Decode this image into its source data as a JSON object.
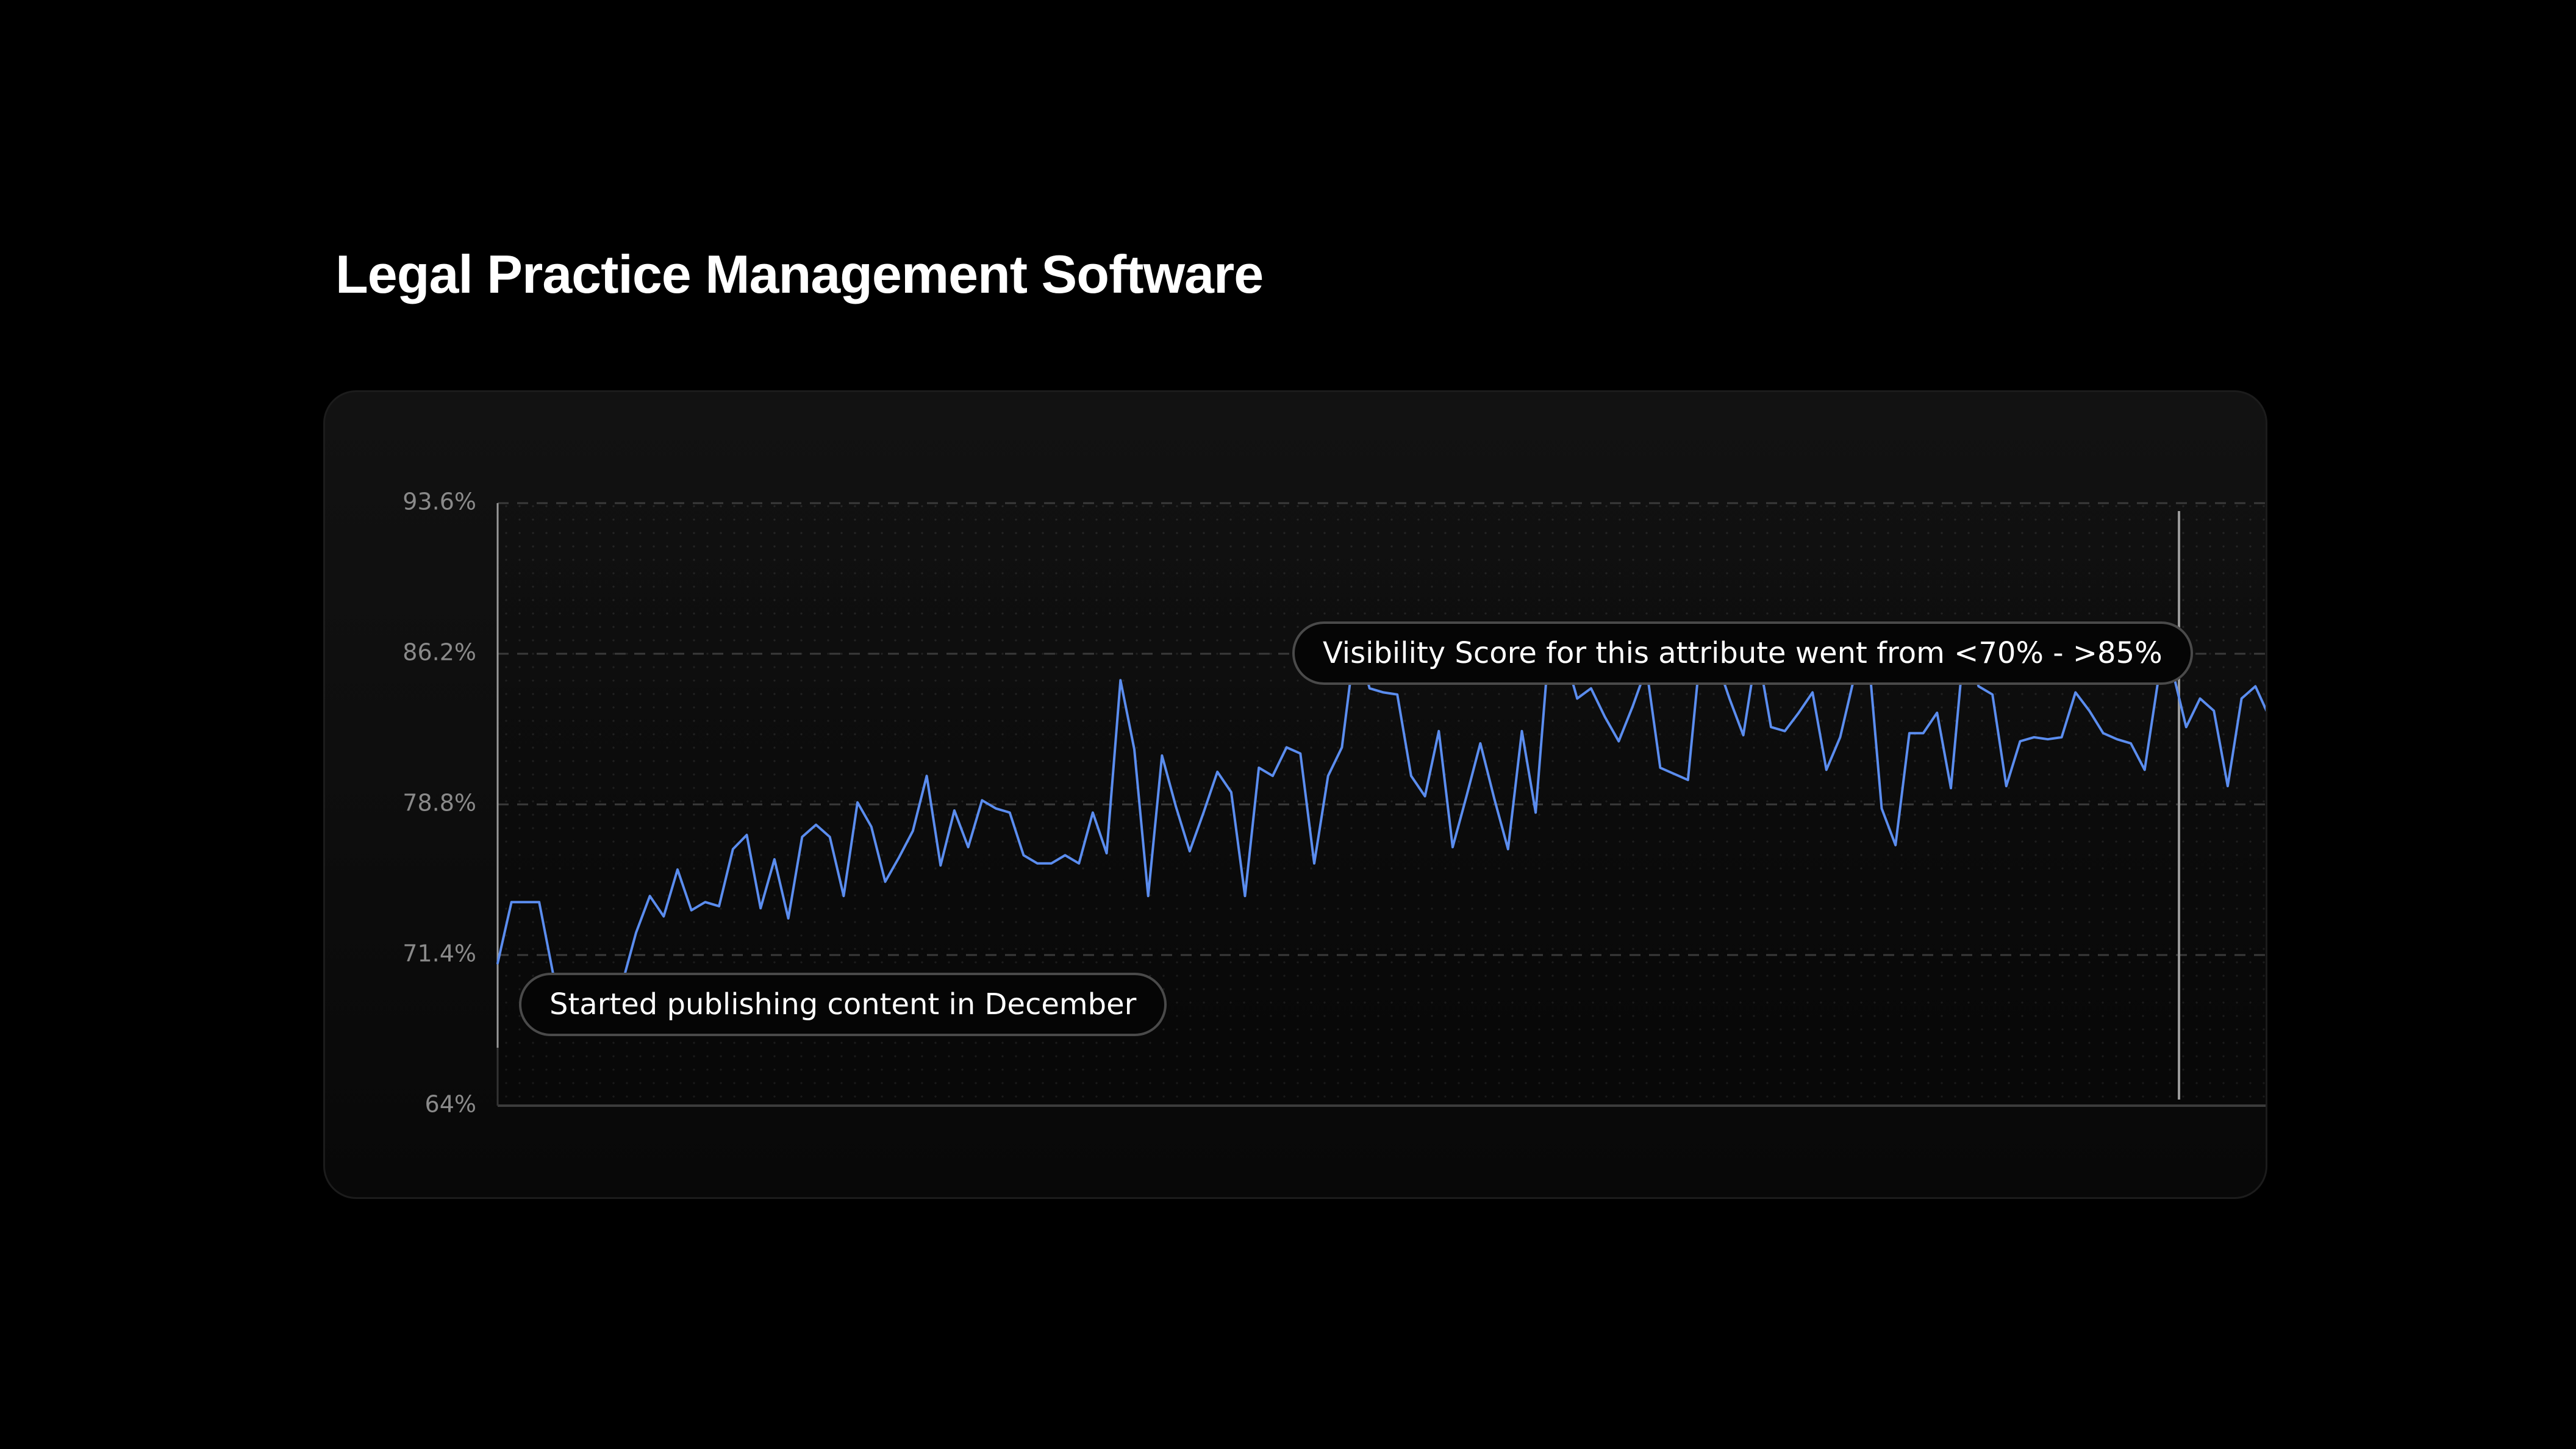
{
  "page": {
    "title": "Legal Practice Management Software"
  },
  "annotations": {
    "start": "Started publishing content in December",
    "visibility": "Visibility Score for this attribute went from <70% - >85%"
  },
  "colors": {
    "background": "#000000",
    "card": "#111111",
    "line": "#5b8def",
    "grid": "#3a3a3a",
    "marker": "#9a9a9a",
    "tick_label": "#8a8a8a"
  },
  "chart_data": {
    "type": "line",
    "title": "Legal Practice Management Software",
    "xlabel": "",
    "ylabel": "",
    "ylim": [
      64,
      93.6
    ],
    "yticks": [
      "93.6%",
      "86.2%",
      "78.8%",
      "71.4%",
      "64%"
    ],
    "ytick_values": [
      93.6,
      86.2,
      78.8,
      71.4,
      64
    ],
    "grid": "horizontal dashed",
    "legend": "none",
    "series": [
      {
        "values": [
          71.0,
          74.0,
          74.0,
          74.0,
          70.5,
          69.0,
          68.5,
          68.5,
          69.0,
          70.0,
          72.5,
          74.3,
          73.3,
          75.6,
          73.6,
          74.0,
          73.8,
          76.6,
          77.3,
          73.7,
          76.1,
          73.2,
          77.2,
          77.8,
          77.2,
          74.3,
          78.9,
          77.7,
          75.0,
          76.2,
          77.5,
          80.2,
          75.8,
          78.5,
          76.7,
          79.0,
          78.6,
          78.4,
          76.3,
          75.9,
          75.9,
          76.3,
          75.9,
          78.4,
          76.4,
          84.9,
          81.5,
          74.3,
          81.2,
          78.7,
          76.5,
          78.4,
          80.4,
          79.4,
          74.3,
          80.6,
          80.2,
          81.6,
          81.3,
          75.9,
          80.2,
          81.6,
          87.0,
          84.5,
          84.3,
          84.2,
          80.2,
          79.2,
          82.4,
          76.7,
          79.2,
          81.8,
          79.1,
          76.6,
          82.4,
          78.4,
          86.9,
          86.4,
          84.0,
          84.5,
          83.1,
          81.9,
          83.6,
          85.5,
          80.6,
          80.3,
          80.0,
          87.0,
          86.0,
          84.0,
          82.2,
          86.5,
          82.6,
          82.4,
          83.3,
          84.3,
          80.5,
          82.1,
          85.0,
          86.5,
          78.6,
          76.8,
          82.3,
          82.3,
          83.3,
          79.6,
          87.0,
          84.6,
          84.2,
          79.7,
          81.9,
          82.1,
          82.0,
          82.1,
          84.3,
          83.4,
          82.3,
          82.0,
          81.8,
          80.5,
          85.0,
          85.4,
          82.6,
          84.0,
          83.4,
          79.7,
          84.0,
          84.6,
          83.1
        ]
      }
    ],
    "annotations": [
      "Started publishing content in December",
      "Visibility Score for this attribute went from <70% - >85%"
    ]
  }
}
